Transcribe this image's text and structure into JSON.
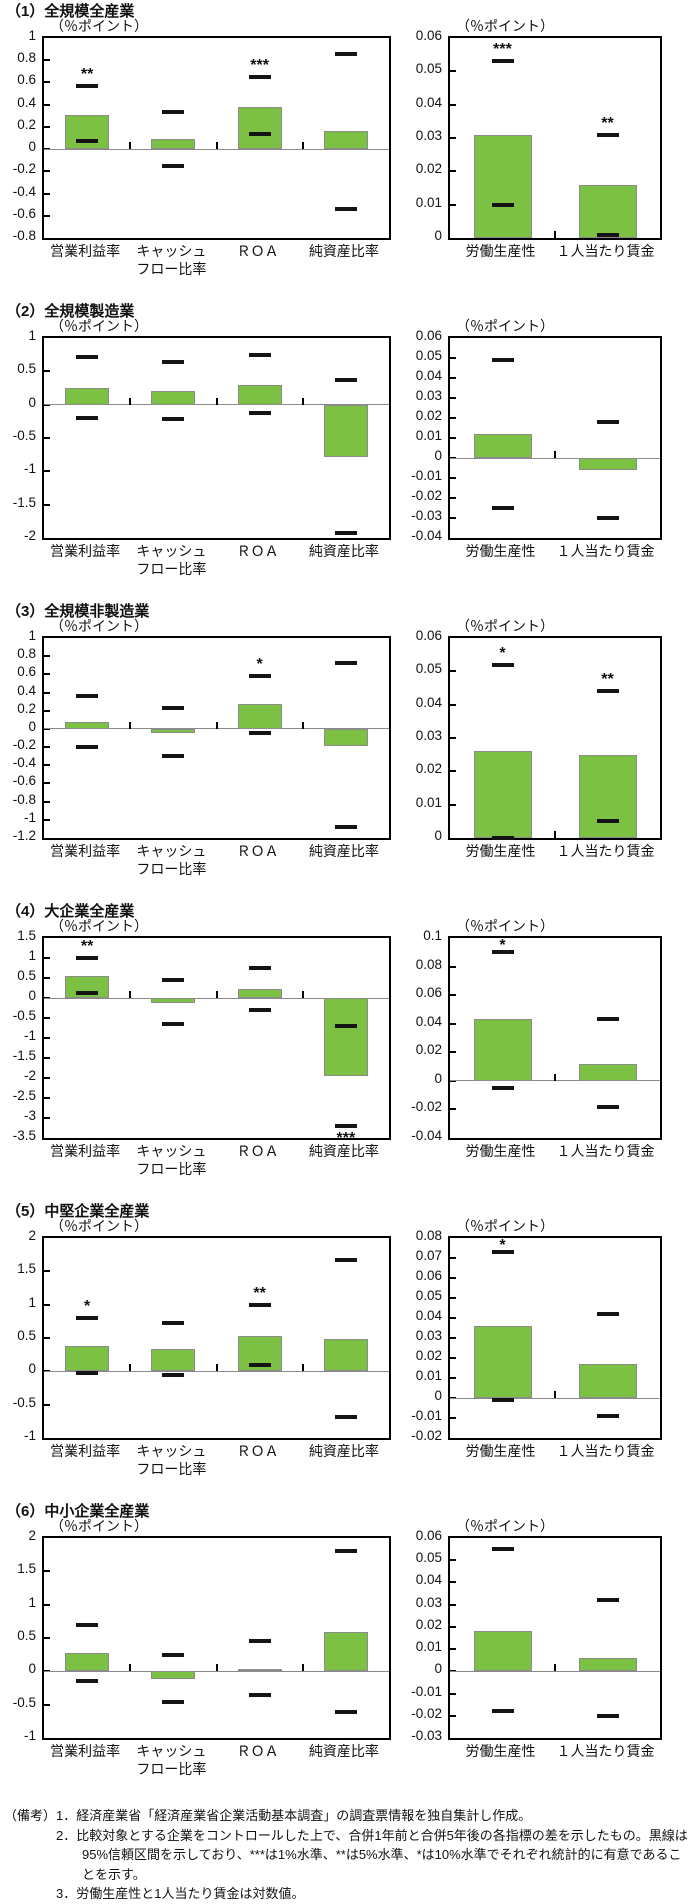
{
  "unit_label": "（％ポイント）",
  "colors": {
    "bar_fill": "#7cc143",
    "bar_border": "#8c8c8c",
    "ci_marker": "#141414",
    "zero_line": "#8a8a8a",
    "plot_border": "#000000"
  },
  "legend_note": "黒線は95%信頼区間",
  "chart_data": [
    {
      "title": "（1）全規模全産業",
      "left": {
        "type": "bar",
        "ylabel": "（％ポイント）",
        "ylim": [
          -0.8,
          1
        ],
        "step": 0.2,
        "decimals": 1,
        "bars": [
          {
            "label": "営業利益率",
            "value": 0.31,
            "ci": [
              0.07,
              0.57
            ],
            "sig": "**",
            "sig_pos": "above"
          },
          {
            "label": "キャッシュ\nフロー比率",
            "value": 0.09,
            "ci": [
              -0.15,
              0.33
            ],
            "sig": "",
            "sig_pos": "above"
          },
          {
            "label": "ＲＯＡ",
            "value": 0.38,
            "ci": [
              0.14,
              0.65
            ],
            "sig": "***",
            "sig_pos": "above"
          },
          {
            "label": "純資産比率",
            "value": 0.16,
            "ci": [
              -0.54,
              0.86
            ],
            "sig": "",
            "sig_pos": "above"
          }
        ]
      },
      "right": {
        "type": "bar",
        "ylabel": "（％ポイント）",
        "ylim": [
          0,
          0.06
        ],
        "step": 0.01,
        "decimals": 2,
        "bars": [
          {
            "label": "労働生産性",
            "value": 0.031,
            "ci": [
              0.01,
              0.053
            ],
            "sig": "***",
            "sig_pos": "above"
          },
          {
            "label": "１人当たり賃金",
            "value": 0.016,
            "ci": [
              0.001,
              0.031
            ],
            "sig": "**",
            "sig_pos": "above"
          }
        ]
      }
    },
    {
      "title": "（2）全規模製造業",
      "left": {
        "type": "bar",
        "ylabel": "（％ポイント）",
        "ylim": [
          -2,
          1
        ],
        "step": 0.5,
        "decimals": 1,
        "bars": [
          {
            "label": "営業利益率",
            "value": 0.25,
            "ci": [
              -0.2,
              0.72
            ],
            "sig": "",
            "sig_pos": "above"
          },
          {
            "label": "キャッシュ\nフロー比率",
            "value": 0.2,
            "ci": [
              -0.22,
              0.64
            ],
            "sig": "",
            "sig_pos": "above"
          },
          {
            "label": "ＲＯＡ",
            "value": 0.29,
            "ci": [
              -0.13,
              0.74
            ],
            "sig": "",
            "sig_pos": "above"
          },
          {
            "label": "純資産比率",
            "value": -0.78,
            "ci": [
              -1.93,
              0.37
            ],
            "sig": "",
            "sig_pos": "above"
          }
        ]
      },
      "right": {
        "type": "bar",
        "ylabel": "（％ポイント）",
        "ylim": [
          -0.04,
          0.06
        ],
        "step": 0.01,
        "decimals": 2,
        "bars": [
          {
            "label": "労働生産性",
            "value": 0.012,
            "ci": [
              -0.025,
              0.049
            ],
            "sig": "",
            "sig_pos": "above"
          },
          {
            "label": "１人当たり賃金",
            "value": -0.006,
            "ci": [
              -0.03,
              0.018
            ],
            "sig": "",
            "sig_pos": "above"
          }
        ]
      }
    },
    {
      "title": "（3）全規模非製造業",
      "left": {
        "type": "bar",
        "ylabel": "（％ポイント）",
        "ylim": [
          -1.2,
          1
        ],
        "step": 0.2,
        "decimals": 1,
        "bars": [
          {
            "label": "営業利益率",
            "value": 0.08,
            "ci": [
              -0.2,
              0.36
            ],
            "sig": "",
            "sig_pos": "above"
          },
          {
            "label": "キャッシュ\nフロー比率",
            "value": -0.04,
            "ci": [
              -0.3,
              0.23
            ],
            "sig": "",
            "sig_pos": "above"
          },
          {
            "label": "ＲＯＡ",
            "value": 0.27,
            "ci": [
              -0.04,
              0.58
            ],
            "sig": "*",
            "sig_pos": "above"
          },
          {
            "label": "純資産比率",
            "value": -0.19,
            "ci": [
              -1.08,
              0.73
            ],
            "sig": "",
            "sig_pos": "above"
          }
        ]
      },
      "right": {
        "type": "bar",
        "ylabel": "（％ポイント）",
        "ylim": [
          0,
          0.06
        ],
        "step": 0.01,
        "decimals": 2,
        "bars": [
          {
            "label": "労働生産性",
            "value": 0.026,
            "ci": [
              0.0,
              0.052
            ],
            "sig": "*",
            "sig_pos": "above"
          },
          {
            "label": "１人当たり賃金",
            "value": 0.025,
            "ci": [
              0.005,
              0.044
            ],
            "sig": "**",
            "sig_pos": "above"
          }
        ]
      }
    },
    {
      "title": "（4）大企業全産業",
      "left": {
        "type": "bar",
        "ylabel": "（％ポイント）",
        "ylim": [
          -3.5,
          1.5
        ],
        "step": 0.5,
        "decimals": 1,
        "bars": [
          {
            "label": "営業利益率",
            "value": 0.55,
            "ci": [
              0.12,
              1.0
            ],
            "sig": "**",
            "sig_pos": "above"
          },
          {
            "label": "キャッシュ\nフロー比率",
            "value": -0.13,
            "ci": [
              -0.65,
              0.45
            ],
            "sig": "",
            "sig_pos": "above"
          },
          {
            "label": "ＲＯＡ",
            "value": 0.22,
            "ci": [
              -0.3,
              0.75
            ],
            "sig": "",
            "sig_pos": "above"
          },
          {
            "label": "純資産比率",
            "value": -1.95,
            "ci": [
              -3.2,
              -0.7
            ],
            "sig": "***",
            "sig_pos": "below"
          }
        ]
      },
      "right": {
        "type": "bar",
        "ylabel": "（％ポイント）",
        "ylim": [
          -0.04,
          0.1
        ],
        "step": 0.02,
        "decimals": 2,
        "bars": [
          {
            "label": "労働生産性",
            "value": 0.043,
            "ci": [
              -0.005,
              0.09
            ],
            "sig": "*",
            "sig_pos": "above"
          },
          {
            "label": "１人当たり賃金",
            "value": 0.012,
            "ci": [
              -0.018,
              0.043
            ],
            "sig": "",
            "sig_pos": "above"
          }
        ]
      }
    },
    {
      "title": "（5）中堅企業全産業",
      "left": {
        "type": "bar",
        "ylabel": "（％ポイント）",
        "ylim": [
          -1,
          2
        ],
        "step": 0.5,
        "decimals": 1,
        "bars": [
          {
            "label": "営業利益率",
            "value": 0.38,
            "ci": [
              -0.03,
              0.8
            ],
            "sig": "*",
            "sig_pos": "above"
          },
          {
            "label": "キャッシュ\nフロー比率",
            "value": 0.34,
            "ci": [
              -0.06,
              0.73
            ],
            "sig": "",
            "sig_pos": "above"
          },
          {
            "label": "ＲＯＡ",
            "value": 0.53,
            "ci": [
              0.09,
              1.0
            ],
            "sig": "**",
            "sig_pos": "above"
          },
          {
            "label": "純資産比率",
            "value": 0.49,
            "ci": [
              -0.68,
              1.67
            ],
            "sig": "",
            "sig_pos": "above"
          }
        ]
      },
      "right": {
        "type": "bar",
        "ylabel": "（％ポイント）",
        "ylim": [
          -0.02,
          0.08
        ],
        "step": 0.01,
        "decimals": 2,
        "bars": [
          {
            "label": "労働生産性",
            "value": 0.036,
            "ci": [
              -0.001,
              0.073
            ],
            "sig": "*",
            "sig_pos": "above"
          },
          {
            "label": "１人当たり賃金",
            "value": 0.017,
            "ci": [
              -0.009,
              0.042
            ],
            "sig": "",
            "sig_pos": "above"
          }
        ]
      }
    },
    {
      "title": "（6）中小企業全産業",
      "left": {
        "type": "bar",
        "ylabel": "（％ポイント）",
        "ylim": [
          -1,
          2
        ],
        "step": 0.5,
        "decimals": 1,
        "bars": [
          {
            "label": "営業利益率",
            "value": 0.27,
            "ci": [
              -0.15,
              0.7
            ],
            "sig": "",
            "sig_pos": "above"
          },
          {
            "label": "キャッシュ\nフロー比率",
            "value": -0.12,
            "ci": [
              -0.46,
              0.24
            ],
            "sig": "",
            "sig_pos": "above"
          },
          {
            "label": "ＲＯＡ",
            "value": 0.04,
            "ci": [
              -0.36,
              0.45
            ],
            "sig": "",
            "sig_pos": "above"
          },
          {
            "label": "純資産比率",
            "value": 0.59,
            "ci": [
              -0.61,
              1.8
            ],
            "sig": "",
            "sig_pos": "above"
          }
        ]
      },
      "right": {
        "type": "bar",
        "ylabel": "（％ポイント）",
        "ylim": [
          -0.03,
          0.06
        ],
        "step": 0.01,
        "decimals": 2,
        "bars": [
          {
            "label": "労働生産性",
            "value": 0.018,
            "ci": [
              -0.018,
              0.055
            ],
            "sig": "",
            "sig_pos": "above"
          },
          {
            "label": "１人当たり賃金",
            "value": 0.006,
            "ci": [
              -0.02,
              0.032
            ],
            "sig": "",
            "sig_pos": "above"
          }
        ]
      }
    }
  ],
  "notes": {
    "label": "（備考）",
    "items": [
      "1．経済産業省「経済産業省企業活動基本調査」の調査票情報を独自集計し作成。",
      "2．比較対象とする企業をコントロールした上で、合併1年前と合併5年後の各指標の差を示したもの。黒線は95%信頼区間を示しており、***は1%水準、**は5%水準、*は10%水準でそれぞれ統計的に有意であることを示す。",
      "3．労働生産性と1人当たり賃金は対数値。"
    ]
  }
}
